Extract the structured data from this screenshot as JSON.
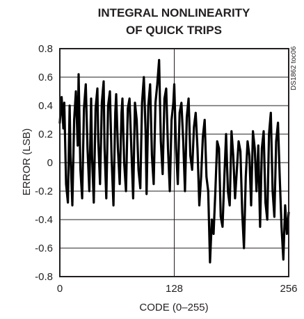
{
  "chart_data": {
    "type": "line",
    "title": [
      "INTEGRAL NONLINEARITY",
      "OF QUICK TRIPS"
    ],
    "xlabel": "CODE (0–255)",
    "ylabel": "ERROR (LSB)",
    "side_label": "DS1862 toc06",
    "xlim": [
      0,
      256
    ],
    "ylim": [
      -0.8,
      0.8
    ],
    "x_ticks": [
      "0",
      "128",
      "256"
    ],
    "y_ticks": [
      "0.8",
      "0.6",
      "0.4",
      "0.2",
      "0",
      "-0.2",
      "-0.4",
      "-0.6",
      "-0.8"
    ],
    "grid": true,
    "series": [
      {
        "color": "#000000",
        "x": [
          0,
          2,
          4,
          5,
          7,
          9,
          11,
          12,
          14,
          16,
          18,
          20,
          21,
          23,
          25,
          27,
          29,
          31,
          33,
          35,
          36,
          38,
          40,
          42,
          43,
          45,
          47,
          49,
          50,
          52,
          54,
          56,
          58,
          60,
          62,
          63,
          65,
          67,
          69,
          70,
          72,
          74,
          76,
          78,
          80,
          82,
          84,
          86,
          88,
          90,
          92,
          94,
          96,
          97,
          99,
          101,
          103,
          105,
          107,
          109,
          111,
          113,
          115,
          117,
          119,
          121,
          123,
          125,
          127,
          128,
          130,
          132,
          134,
          136,
          138,
          140,
          142,
          144,
          146,
          148,
          150,
          152,
          154,
          156,
          158,
          160,
          162,
          164,
          166,
          168,
          170,
          172,
          174,
          176,
          178,
          180,
          182,
          184,
          186,
          188,
          190,
          192,
          194,
          196,
          198,
          200,
          202,
          204,
          206,
          208,
          210,
          212,
          214,
          216,
          218,
          220,
          222,
          224,
          226,
          228,
          230,
          232,
          234,
          236,
          238,
          240,
          242,
          244,
          246,
          248,
          250,
          252,
          254,
          256
        ],
        "y": [
          0.28,
          0.46,
          0.24,
          0.42,
          -0.15,
          -0.28,
          0.4,
          0.05,
          -0.3,
          0.3,
          0.5,
          0.12,
          0.62,
          -0.05,
          -0.25,
          0.38,
          0.55,
          0.1,
          -0.2,
          0.45,
          0.05,
          -0.28,
          0.38,
          0.52,
          0.15,
          -0.15,
          0.42,
          0.57,
          0.1,
          -0.25,
          0.4,
          0.5,
          0.02,
          -0.3,
          0.35,
          0.48,
          0.1,
          -0.15,
          0.35,
          0.45,
          0.0,
          -0.2,
          0.38,
          0.45,
          0.1,
          -0.25,
          0.42,
          0.3,
          -0.05,
          -0.18,
          0.42,
          0.6,
          0.2,
          -0.22,
          0.4,
          0.55,
          0.05,
          -0.15,
          0.42,
          0.55,
          0.72,
          0.15,
          -0.08,
          0.45,
          0.52,
          0.1,
          -0.2,
          0.3,
          0.42,
          0.55,
          0.1,
          -0.15,
          0.35,
          0.42,
          0.15,
          -0.2,
          0.32,
          0.45,
          0.05,
          -0.05,
          0.25,
          0.35,
          0.1,
          -0.3,
          -0.1,
          0.18,
          0.3,
          -0.1,
          -0.2,
          -0.7,
          -0.4,
          -0.5,
          -0.2,
          0.15,
          0.1,
          -0.38,
          -0.45,
          -0.1,
          0.2,
          -0.2,
          -0.3,
          0.22,
          0.05,
          -0.25,
          -0.05,
          0.15,
          0.08,
          -0.35,
          -0.6,
          -0.1,
          0.15,
          0.05,
          -0.3,
          0.22,
          0.1,
          -0.2,
          0.12,
          -0.45,
          0.1,
          0.22,
          -0.28,
          -0.4,
          0.2,
          0.35,
          -0.2,
          -0.38,
          0.15,
          0.28,
          -0.1,
          -0.45,
          -0.68,
          -0.3,
          -0.5,
          -0.35
        ]
      }
    ]
  }
}
